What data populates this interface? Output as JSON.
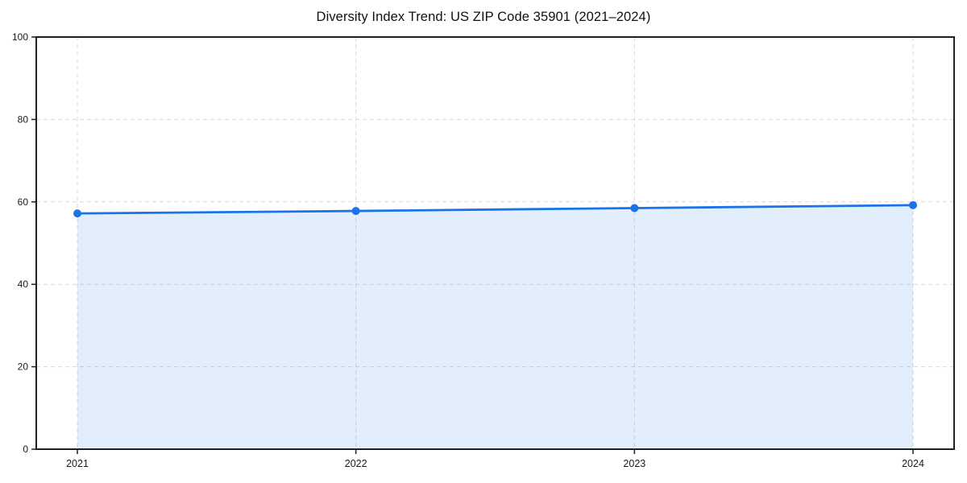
{
  "figure": {
    "background_color": "#ffffff",
    "title": "Diversity Index Trend: US ZIP Code 35901 (2021–2024)"
  },
  "chart_data": {
    "type": "line",
    "title": "Diversity Index Trend: US ZIP Code 35901 (2021–2024)",
    "x": [
      "2021",
      "2022",
      "2023",
      "2024"
    ],
    "series": [
      {
        "name": "Diversity Index",
        "values": [
          57.2,
          57.8,
          58.5,
          59.2
        ]
      }
    ],
    "xlabel": "",
    "ylabel": "",
    "ylim": [
      0,
      100
    ],
    "yticks": [
      0,
      20,
      40,
      60,
      80,
      100
    ],
    "grid": true,
    "grid_style": "dashed",
    "grid_color": "#d9d9d9",
    "legend_position": "none",
    "line_color": "#1a73e8",
    "marker": "circle",
    "marker_color": "#1a73e8",
    "area_fill": true,
    "area_fill_color": "#1a73e8",
    "area_fill_opacity": 0.12,
    "spine_color": "#1f1f1f"
  }
}
